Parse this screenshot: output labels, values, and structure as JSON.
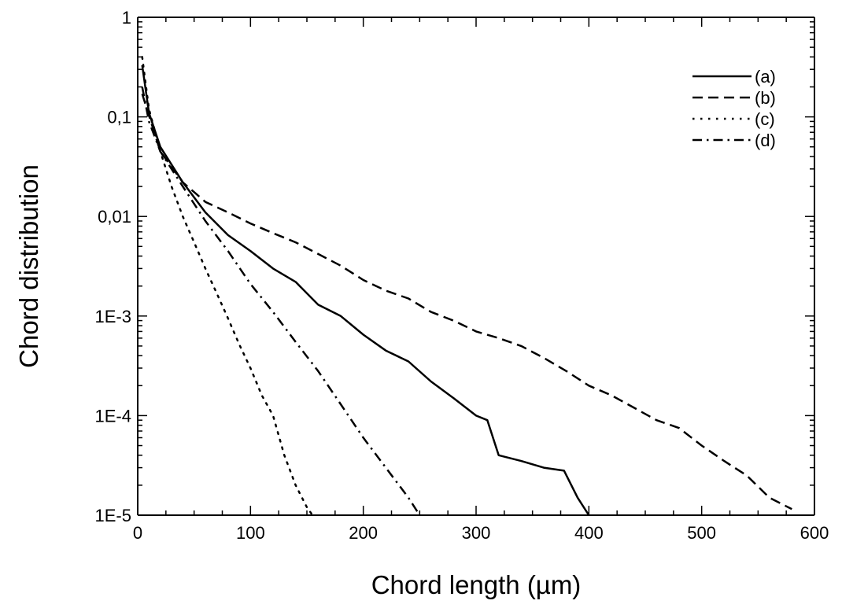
{
  "chart_data": {
    "type": "line",
    "xlabel": "Chord length (µm)",
    "ylabel": "Chord distribution",
    "xlim": [
      0,
      600
    ],
    "ylim": [
      1e-05,
      1
    ],
    "y_scale": "log",
    "x_ticks": [
      0,
      100,
      200,
      300,
      400,
      500,
      600
    ],
    "x_tick_labels": [
      "0",
      "100",
      "200",
      "300",
      "400",
      "500",
      "600"
    ],
    "y_ticks": [
      1,
      0.1,
      0.01,
      0.001,
      0.0001,
      1e-05
    ],
    "y_tick_labels": [
      "1",
      "0,1",
      "0,01",
      "1E-3",
      "1E-4",
      "1E-5"
    ],
    "grid": false,
    "legend_position": "top-right",
    "series": [
      {
        "name": "(a)",
        "style": "solid",
        "x": [
          4,
          10,
          20,
          40,
          60,
          80,
          100,
          120,
          140,
          160,
          180,
          200,
          220,
          240,
          260,
          280,
          300,
          310,
          320,
          340,
          360,
          378,
          390,
          400
        ],
        "y": [
          0.33,
          0.11,
          0.05,
          0.022,
          0.011,
          0.0065,
          0.0045,
          0.003,
          0.0022,
          0.0013,
          0.001,
          0.00065,
          0.00045,
          0.00035,
          0.00022,
          0.00015,
          0.0001,
          9e-05,
          4e-05,
          3.5e-05,
          3e-05,
          2.8e-05,
          1.5e-05,
          1e-05
        ]
      },
      {
        "name": "(b)",
        "style": "dashed",
        "x": [
          4,
          20,
          40,
          60,
          80,
          100,
          120,
          140,
          160,
          180,
          200,
          220,
          240,
          260,
          280,
          300,
          320,
          340,
          360,
          380,
          400,
          420,
          440,
          460,
          480,
          500,
          520,
          540,
          560,
          580
        ],
        "y": [
          0.17,
          0.045,
          0.022,
          0.014,
          0.011,
          0.0085,
          0.0068,
          0.0055,
          0.0042,
          0.0032,
          0.0023,
          0.0018,
          0.0015,
          0.0011,
          0.0009,
          0.0007,
          0.0006,
          0.0005,
          0.00038,
          0.00028,
          0.0002,
          0.00016,
          0.00012,
          9e-05,
          7.5e-05,
          5e-05,
          3.5e-05,
          2.5e-05,
          1.5e-05,
          1.15e-05
        ]
      },
      {
        "name": "(c)",
        "style": "dotted",
        "x": [
          4,
          10,
          20,
          30,
          40,
          50,
          60,
          70,
          80,
          90,
          100,
          110,
          120,
          130,
          140,
          150,
          155
        ],
        "y": [
          0.4,
          0.12,
          0.045,
          0.02,
          0.01,
          0.0055,
          0.003,
          0.0017,
          0.00095,
          0.00052,
          0.0003,
          0.00016,
          0.0001,
          4e-05,
          2e-05,
          1.2e-05,
          1e-05
        ]
      },
      {
        "name": "(d)",
        "style": "dashdot",
        "x": [
          4,
          10,
          20,
          40,
          60,
          80,
          100,
          120,
          140,
          160,
          180,
          200,
          220,
          240,
          250
        ],
        "y": [
          0.2,
          0.09,
          0.045,
          0.02,
          0.009,
          0.0045,
          0.0021,
          0.0011,
          0.00055,
          0.00028,
          0.00013,
          6e-05,
          3e-05,
          1.5e-05,
          1e-05
        ]
      }
    ]
  }
}
